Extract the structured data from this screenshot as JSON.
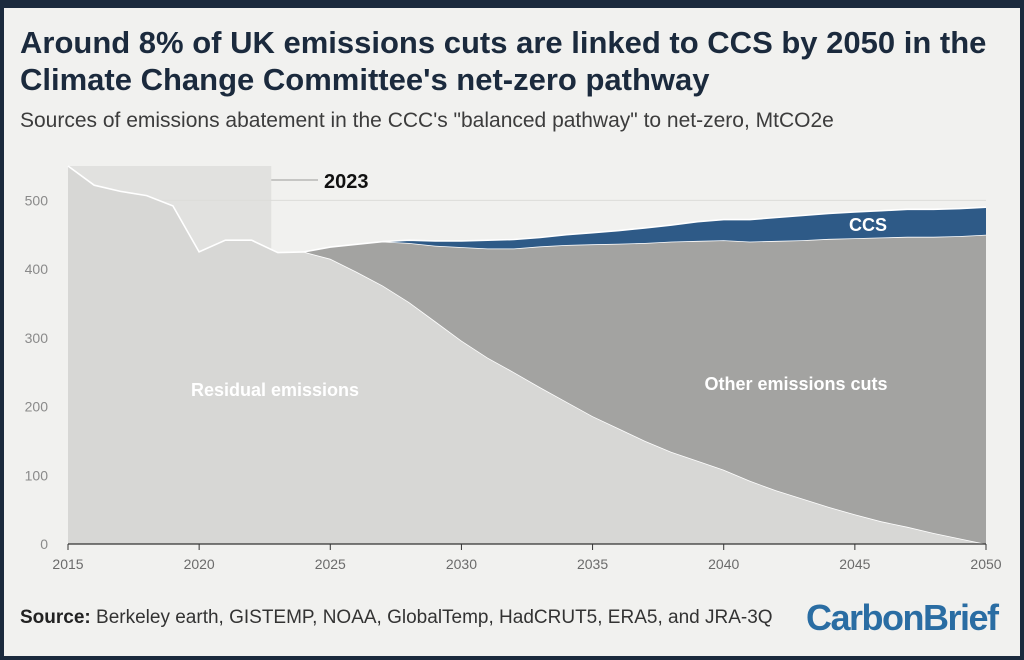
{
  "header": {
    "title": "Around 8% of UK emissions cuts are linked to CCS by 2050 in the Climate Change Committee's net-zero pathway",
    "subtitle": "Sources of emissions abatement in the CCC's \"balanced pathway\" to net-zero, MtCO2e"
  },
  "footer": {
    "source_label": "Source:",
    "source_text": "Berkeley earth, GISTEMP, NOAA, GlobalTemp, HadCRUT5, ERA5, and JRA-3Q",
    "logo_part1": "Carbon",
    "logo_part2": "Brief"
  },
  "colors": {
    "residual": "#d7d7d5",
    "other_cuts": "#a3a3a1",
    "ccs": "#2e5a87",
    "historic_shade": "#e1e1df",
    "title": "#1b2a3d",
    "logo": "#2a6da3"
  },
  "chart_data": {
    "type": "area",
    "stacked": true,
    "xlim": [
      2015,
      2050
    ],
    "ylim": [
      0,
      550
    ],
    "x_ticks": [
      2015,
      2020,
      2025,
      2030,
      2035,
      2040,
      2045,
      2050
    ],
    "y_ticks": [
      0,
      100,
      200,
      300,
      400,
      500
    ],
    "grid": "horizontal",
    "historic_until": 2022.75,
    "annotation": "2023",
    "x": [
      2015,
      2016,
      2017,
      2018,
      2019,
      2020,
      2021,
      2022,
      2023,
      2024,
      2025,
      2026,
      2027,
      2028,
      2029,
      2030,
      2031,
      2032,
      2033,
      2034,
      2035,
      2036,
      2037,
      2038,
      2039,
      2040,
      2041,
      2042,
      2043,
      2044,
      2045,
      2046,
      2047,
      2048,
      2049,
      2050
    ],
    "series": [
      {
        "name": "Residual emissions",
        "values": [
          550,
          522,
          513,
          507,
          492,
          425,
          442,
          442,
          424,
          425,
          415,
          396,
          376,
          352,
          324,
          296,
          271,
          250,
          228,
          207,
          186,
          168,
          150,
          134,
          121,
          108,
          92,
          78,
          66,
          54,
          43,
          33,
          25,
          16,
          8,
          0
        ]
      },
      {
        "name": "Other emissions cuts",
        "values": [
          0,
          0,
          0,
          0,
          0,
          0,
          0,
          0,
          0,
          0,
          17,
          40,
          64,
          86,
          110,
          136,
          159,
          180,
          205,
          228,
          250,
          269,
          288,
          306,
          320,
          334,
          348,
          363,
          376,
          390,
          402,
          413,
          422,
          431,
          440,
          450
        ]
      },
      {
        "name": "CCS",
        "values": [
          0,
          0,
          0,
          0,
          0,
          0,
          0,
          0,
          0,
          0,
          0,
          0,
          0,
          4,
          7,
          9,
          12,
          13,
          13,
          15,
          17,
          19,
          22,
          24,
          28,
          30,
          32,
          34,
          36,
          37,
          38,
          39,
          40,
          40,
          40,
          40
        ]
      }
    ]
  }
}
